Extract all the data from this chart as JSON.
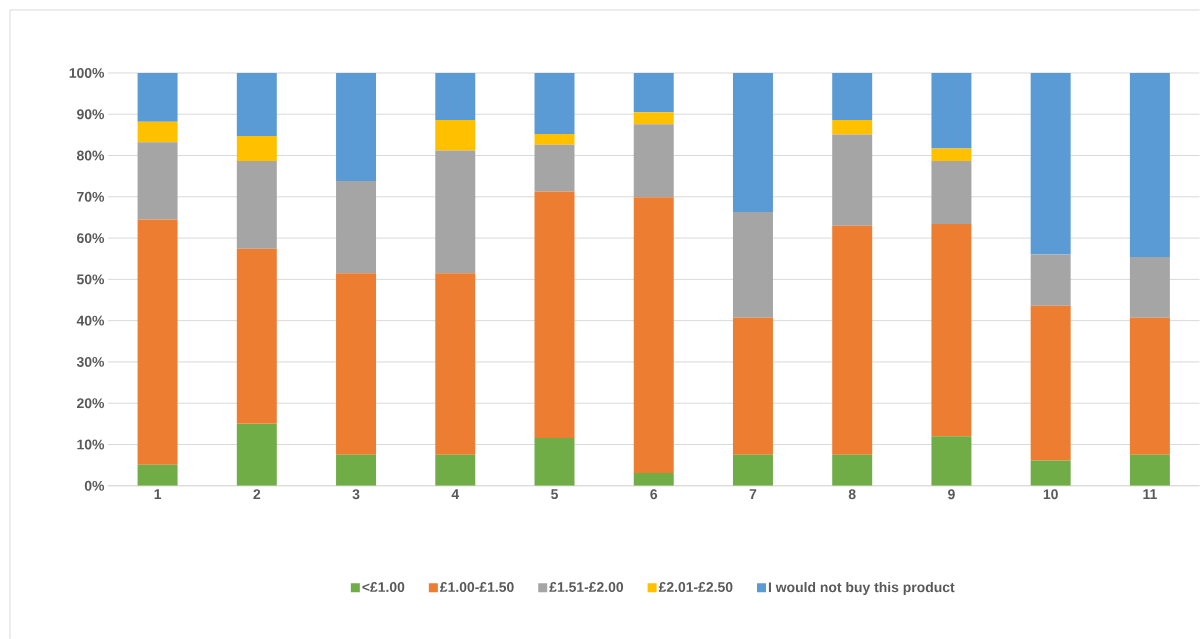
{
  "chart_data": {
    "type": "bar",
    "stacked": true,
    "categories": [
      "1",
      "2",
      "3",
      "4",
      "5",
      "6",
      "7",
      "8",
      "9",
      "10",
      "11"
    ],
    "series": [
      {
        "name": "<£1.00",
        "color": "#70ad47",
        "values": [
          5.1,
          15.0,
          7.5,
          7.5,
          11.6,
          3.1,
          7.5,
          7.5,
          12.0,
          6.1,
          7.5
        ]
      },
      {
        "name": "£1.00-£1.50",
        "color": "#ed7d31",
        "values": [
          59.4,
          42.4,
          44.0,
          44.0,
          59.7,
          66.8,
          33.2,
          55.5,
          51.4,
          37.5,
          33.2
        ]
      },
      {
        "name": "£1.51-£2.00",
        "color": "#a5a5a5",
        "values": [
          18.7,
          21.3,
          22.3,
          29.7,
          11.3,
          17.7,
          25.6,
          22.1,
          15.3,
          12.4,
          14.7
        ]
      },
      {
        "name": "£2.01-£2.50",
        "color": "#ffc000",
        "values": [
          5.0,
          6.0,
          0,
          7.4,
          2.6,
          2.9,
          0,
          3.5,
          3.0,
          0,
          0
        ]
      },
      {
        "name": "I would not buy this product",
        "color": "#5b9bd5",
        "values": [
          11.8,
          15.3,
          26.2,
          11.4,
          14.8,
          9.5,
          33.7,
          11.4,
          18.3,
          44.0,
          44.6
        ]
      }
    ],
    "ylim": [
      0,
      100
    ],
    "yticks": [
      {
        "value": 0,
        "label": "0%"
      },
      {
        "value": 10,
        "label": "10%"
      },
      {
        "value": 20,
        "label": "20%"
      },
      {
        "value": 30,
        "label": "30%"
      },
      {
        "value": 40,
        "label": "40%"
      },
      {
        "value": 50,
        "label": "50%"
      },
      {
        "value": 60,
        "label": "60%"
      },
      {
        "value": 70,
        "label": "70%"
      },
      {
        "value": 80,
        "label": "80%"
      },
      {
        "value": 90,
        "label": "90%"
      },
      {
        "value": 100,
        "label": "100%"
      }
    ],
    "grid": "y",
    "legend": "bottom"
  }
}
